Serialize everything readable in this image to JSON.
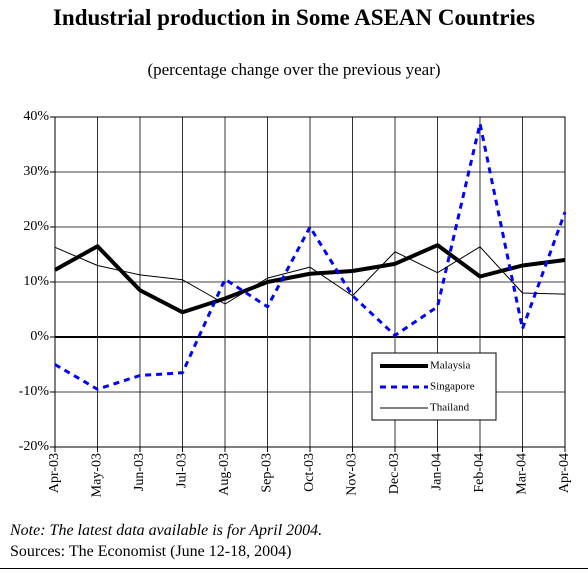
{
  "chart_data": {
    "type": "line",
    "title": "Industrial production in Some ASEAN Countries",
    "subtitle": "(percentage change over the previous year)",
    "note": "Note: The latest data available is for April 2004.",
    "source": "Sources: The Economist (June 12-18, 2004)",
    "categories": [
      "Apr-03",
      "May-03",
      "Jun-03",
      "Jul-03",
      "Aug-03",
      "Sep-03",
      "Oct-03",
      "Nov-03",
      "Dec-03",
      "Jan-04",
      "Feb-04",
      "Mar-04",
      "Apr-04"
    ],
    "series": [
      {
        "name": "Malaysia",
        "color": "#000000",
        "line_width": 4,
        "dashed": false,
        "values": [
          12.2,
          16.5,
          8.5,
          4.5,
          7,
          10,
          11.5,
          12,
          13.3,
          16.7,
          11,
          13,
          14
        ]
      },
      {
        "name": "Singapore",
        "color": "#0000ff",
        "line_width": 3,
        "dashed": true,
        "values": [
          -5,
          -9.5,
          -7,
          -6.5,
          10.5,
          5.5,
          20,
          7.5,
          0.3,
          5.5,
          38.8,
          1.5,
          22.7
        ]
      },
      {
        "name": "Thailand",
        "color": "#000000",
        "line_width": 1,
        "dashed": false,
        "values": [
          16.3,
          13,
          11.3,
          10.4,
          6,
          10.7,
          12.7,
          7.5,
          15.5,
          11.7,
          16.4,
          8,
          7.8
        ]
      }
    ],
    "ylim": [
      -20,
      40
    ],
    "yticks": [
      {
        "value": -20,
        "label": "-20%"
      },
      {
        "value": -10,
        "label": "-10%"
      },
      {
        "value": 0,
        "label": "0%"
      },
      {
        "value": 10,
        "label": "10%"
      },
      {
        "value": 20,
        "label": "20%"
      },
      {
        "value": 30,
        "label": "30%"
      },
      {
        "value": 40,
        "label": "40%"
      }
    ],
    "grid": true,
    "legend": "lower right"
  }
}
